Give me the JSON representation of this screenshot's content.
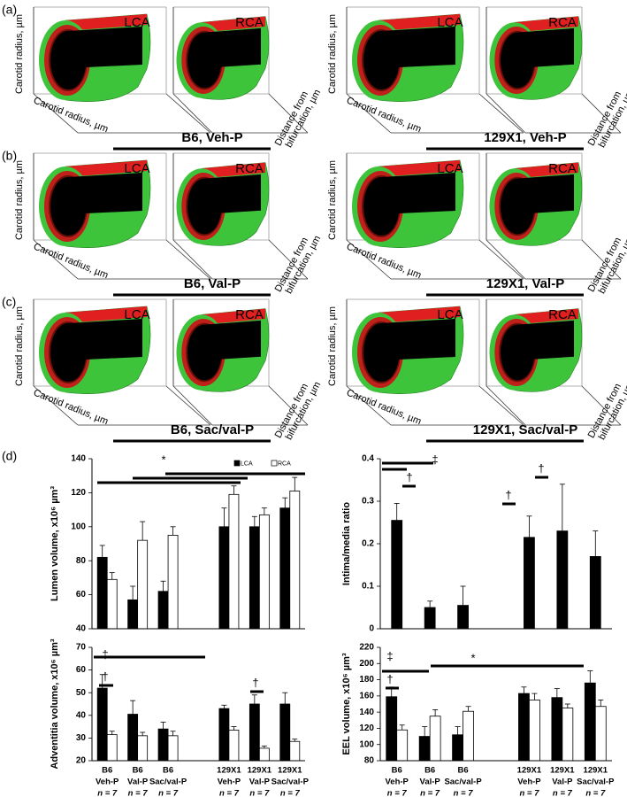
{
  "panels": [
    {
      "label": "(a)",
      "groups": [
        {
          "title": "B6, Veh-P",
          "views": [
            "LCA",
            "RCA"
          ],
          "vertical_label": "Carotid radius, µm",
          "depth_label": "Carotid radius, µm",
          "side_label": [
            "Distance from",
            "bifurcation, µm"
          ]
        },
        {
          "title": "129X1, Veh-P",
          "views": [
            "LCA",
            "RCA"
          ],
          "vertical_label": "Carotid radius, µm",
          "depth_label": "Carotid radius, µm",
          "side_label": [
            "Distance from",
            "bifurcation, µm"
          ]
        }
      ]
    },
    {
      "label": "(b)",
      "groups": [
        {
          "title": "B6, Val-P",
          "views": [
            "LCA",
            "RCA"
          ],
          "vertical_label": "Carotid radius, µm",
          "depth_label": "Carotid radius, µm",
          "side_label": [
            "Distance from",
            "bifurcation, µm"
          ]
        },
        {
          "title": "129X1, Val-P",
          "views": [
            "LCA",
            "RCA"
          ],
          "vertical_label": "Carotid radius, µm",
          "depth_label": "Carotid radius, µm",
          "side_label": [
            "Distance from",
            "bifurcation, µm"
          ]
        }
      ]
    },
    {
      "label": "(c)",
      "groups": [
        {
          "title": "B6, Sac/val-P",
          "views": [
            "LCA",
            "RCA"
          ],
          "vertical_label": "Carotid radius, µm",
          "depth_label": "Carotid radius, µm",
          "side_label": [
            "Distance from",
            "bifurcation, µm"
          ]
        },
        {
          "title": "129X1, Sac/val-P",
          "views": [
            "LCA",
            "RCA"
          ],
          "vertical_label": "Carotid radius, µm",
          "depth_label": "Carotid radius, µm",
          "side_label": [
            "Distance from",
            "bifurcation, µm"
          ]
        }
      ]
    }
  ],
  "panel_d_label": "(d)",
  "groups": [
    [
      "B6",
      "Veh-P",
      "n = 7"
    ],
    [
      "B6",
      "Val-P",
      "n = 7"
    ],
    [
      "B6",
      "Sac/val-P",
      "n = 7"
    ],
    [
      "129X1",
      "Veh-P",
      "n = 7"
    ],
    [
      "129X1",
      "Val-P",
      "n = 7"
    ],
    [
      "129X1",
      "Sac/val-P",
      "n = 7"
    ]
  ],
  "chart_data": [
    {
      "type": "bar",
      "ylabel": "Lumen volume, x10⁶ µm³",
      "ylim": [
        40,
        140
      ],
      "yticks": [
        40,
        60,
        80,
        100,
        120,
        140
      ],
      "legend": true,
      "series": [
        {
          "name": "LCA",
          "color": "#000000",
          "values": [
            82,
            57,
            62,
            100,
            100,
            111
          ],
          "errors": [
            7,
            8,
            6,
            11,
            6,
            6
          ]
        },
        {
          "name": "RCA",
          "color": "#ffffff",
          "values": [
            69,
            92,
            95,
            119,
            107,
            121
          ],
          "errors": [
            4,
            11,
            5,
            5,
            4,
            8
          ]
        }
      ],
      "annotations": [
        "*"
      ]
    },
    {
      "type": "bar",
      "ylabel": "Intima/media ratio",
      "ylim": [
        0,
        0.4
      ],
      "yticks": [
        0,
        0.1,
        0.2,
        0.3,
        0.4
      ],
      "legend": false,
      "series": [
        {
          "name": "LCA",
          "color": "#000000",
          "values": [
            0.255,
            0.05,
            0.055,
            0.215,
            0.23,
            0.17
          ],
          "errors": [
            0.04,
            0.015,
            0.045,
            0.05,
            0.11,
            0.06
          ]
        }
      ],
      "annotations": [
        "‡",
        "†",
        "†",
        "†"
      ]
    },
    {
      "type": "bar",
      "ylabel": "Adventitia volume, x10⁶ µm³",
      "ylim": [
        20,
        70
      ],
      "yticks": [
        20,
        30,
        40,
        50,
        60,
        70
      ],
      "legend": false,
      "series": [
        {
          "name": "LCA",
          "color": "#000000",
          "values": [
            52,
            40.5,
            34,
            43,
            45,
            45
          ],
          "errors": [
            6,
            6,
            3,
            1.5,
            4,
            5
          ]
        },
        {
          "name": "RCA",
          "color": "#ffffff",
          "values": [
            31.5,
            31,
            31,
            33.5,
            25.5,
            28.5
          ],
          "errors": [
            1.5,
            1.5,
            2,
            1.5,
            1,
            1
          ]
        }
      ],
      "annotations": [
        "‡",
        "†",
        "†"
      ]
    },
    {
      "type": "bar",
      "ylabel": "EEL volume, x10⁶ µm³",
      "ylim": [
        80,
        220
      ],
      "yticks": [
        80,
        100,
        120,
        140,
        160,
        180,
        200,
        220
      ],
      "legend": false,
      "series": [
        {
          "name": "LCA",
          "color": "#000000",
          "values": [
            159,
            110,
            112,
            163,
            158,
            176
          ],
          "errors": [
            12,
            12,
            10,
            8,
            11,
            15
          ]
        },
        {
          "name": "RCA",
          "color": "#ffffff",
          "values": [
            118,
            135,
            141,
            155,
            145,
            147
          ],
          "errors": [
            6,
            8,
            6,
            8,
            5,
            8
          ]
        }
      ],
      "annotations": [
        "‡",
        "†",
        "*"
      ]
    }
  ]
}
